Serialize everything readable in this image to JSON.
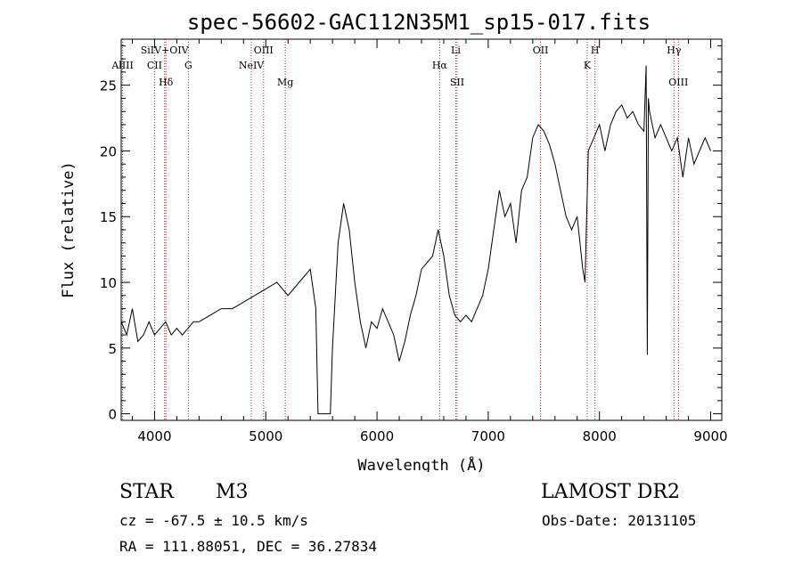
{
  "chart_data": {
    "type": "line",
    "title": "spec-56602-GAC112N35M1_sp15-017.fits",
    "xlabel": "Wavelength (Å)",
    "ylabel": "Flux (relative)",
    "xlim": [
      3700,
      9100
    ],
    "ylim": [
      -0.5,
      28.5
    ],
    "x_ticks": [
      4000,
      5000,
      6000,
      7000,
      8000,
      9000
    ],
    "y_ticks": [
      0,
      5,
      10,
      15,
      20,
      25
    ],
    "grid": false,
    "legend": "none",
    "line_color": "#000000",
    "marker_color": "#b22222",
    "series": [
      {
        "x": [
          3700,
          3750,
          3800,
          3850,
          3900,
          3950,
          4000,
          4050,
          4100,
          4150,
          4200,
          4250,
          4300,
          4350,
          4400,
          4500,
          4600,
          4700,
          4800,
          4900,
          5000,
          5100,
          5200,
          5300,
          5400,
          5450,
          5470,
          5480,
          5580,
          5600,
          5650,
          5700,
          5750,
          5800,
          5850,
          5900,
          5950,
          6000,
          6050,
          6100,
          6150,
          6200,
          6250,
          6300,
          6350,
          6400,
          6450,
          6500,
          6550,
          6600,
          6650,
          6700,
          6750,
          6800,
          6850,
          6900,
          6950,
          7000,
          7050,
          7100,
          7150,
          7200,
          7250,
          7300,
          7350,
          7400,
          7450,
          7500,
          7550,
          7600,
          7650,
          7700,
          7750,
          7800,
          7850,
          7870,
          7900,
          7950,
          8000,
          8050,
          8100,
          8150,
          8200,
          8250,
          8300,
          8350,
          8400,
          8420,
          8430,
          8440,
          8450,
          8500,
          8550,
          8600,
          8650,
          8700,
          8750,
          8800,
          8850,
          8900,
          8950,
          9000
        ],
        "y": [
          7,
          6,
          8,
          5.5,
          6,
          7,
          6,
          6.5,
          7,
          6,
          6.5,
          6,
          6.5,
          7,
          7,
          7.5,
          8,
          8,
          8.5,
          9,
          9.5,
          10,
          9,
          10,
          11,
          8,
          0,
          0,
          0,
          5,
          13,
          16,
          14,
          10,
          7,
          5,
          7,
          6.5,
          8,
          7,
          6,
          4,
          5.5,
          7.5,
          9,
          11,
          11.5,
          12,
          14,
          12,
          9,
          7.5,
          7,
          7.5,
          7,
          8,
          9,
          11,
          14,
          17,
          15,
          16,
          13,
          17,
          18,
          21,
          22,
          21.5,
          20.5,
          19,
          17,
          15,
          14,
          15,
          11,
          10,
          20,
          21,
          22,
          20,
          22,
          23,
          23.5,
          22.5,
          23,
          22,
          21.5,
          26.5,
          4.5,
          24,
          23,
          21,
          22,
          21,
          20,
          21,
          18,
          21,
          19,
          20,
          21,
          20
        ]
      }
    ],
    "lines": [
      {
        "label": "AlIII",
        "x": 3713,
        "row": 1
      },
      {
        "label": "CII",
        "x": 4000,
        "row": 2
      },
      {
        "label": "SiIV+OIV",
        "x": 4090,
        "row": 0
      },
      {
        "label": "Hδ",
        "x": 4102,
        "row": 3
      },
      {
        "label": "G",
        "x": 4304,
        "row": 2
      },
      {
        "label": "NeIV",
        "x": 4870,
        "row": 2
      },
      {
        "label": "OIII",
        "x": 4980,
        "row": 0
      },
      {
        "label": "Mg",
        "x": 5175,
        "row": 3
      },
      {
        "label": "Hα",
        "x": 6563,
        "row": 2
      },
      {
        "label": "Li",
        "x": 6708,
        "row": 0
      },
      {
        "label": "SII",
        "x": 6720,
        "row": 3
      },
      {
        "label": "OII",
        "x": 7470,
        "row": 0
      },
      {
        "label": "K",
        "x": 7890,
        "row": 2
      },
      {
        "label": "H",
        "x": 7960,
        "row": 0
      },
      {
        "label": "Hγ",
        "x": 8670,
        "row": 0
      },
      {
        "label": "OIII",
        "x": 8710,
        "row": 3
      }
    ]
  },
  "info": {
    "class": "STAR",
    "subclass": "M3",
    "survey": "LAMOST DR2",
    "cz": "cz = -67.5 ± 10.5 km/s",
    "obs_date": "Obs-Date: 20131105",
    "coords": "RA = 111.88051, DEC =  36.27834"
  }
}
